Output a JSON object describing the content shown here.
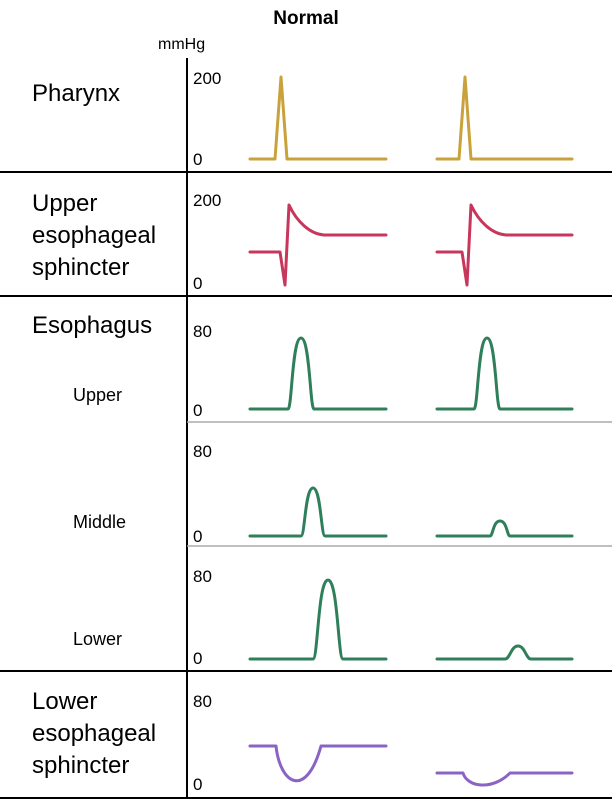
{
  "title": "Normal",
  "unit": "mmHg",
  "colors": {
    "pharynx": "#c9a23c",
    "ues": "#c8365c",
    "esophagus": "#2f7f5a",
    "les": "#8b63c4",
    "rule": "#000000",
    "subrule": "#aaaaaa"
  },
  "rows": {
    "pharynx": {
      "label": "Pharynx",
      "max": "200",
      "min": "0"
    },
    "ues": {
      "label": "Upper\nesophageal\nsphincter",
      "max": "200",
      "min": "0"
    },
    "esophagus": {
      "label": "Esophagus",
      "upper": {
        "label": "Upper",
        "max": "80",
        "min": "0"
      },
      "middle": {
        "label": "Middle",
        "max": "80",
        "min": "0"
      },
      "lower": {
        "label": "Lower",
        "max": "80",
        "min": "0"
      }
    },
    "les": {
      "label": "Lower\nesophageal\nsphincter",
      "max": "80",
      "min": "0"
    }
  }
}
